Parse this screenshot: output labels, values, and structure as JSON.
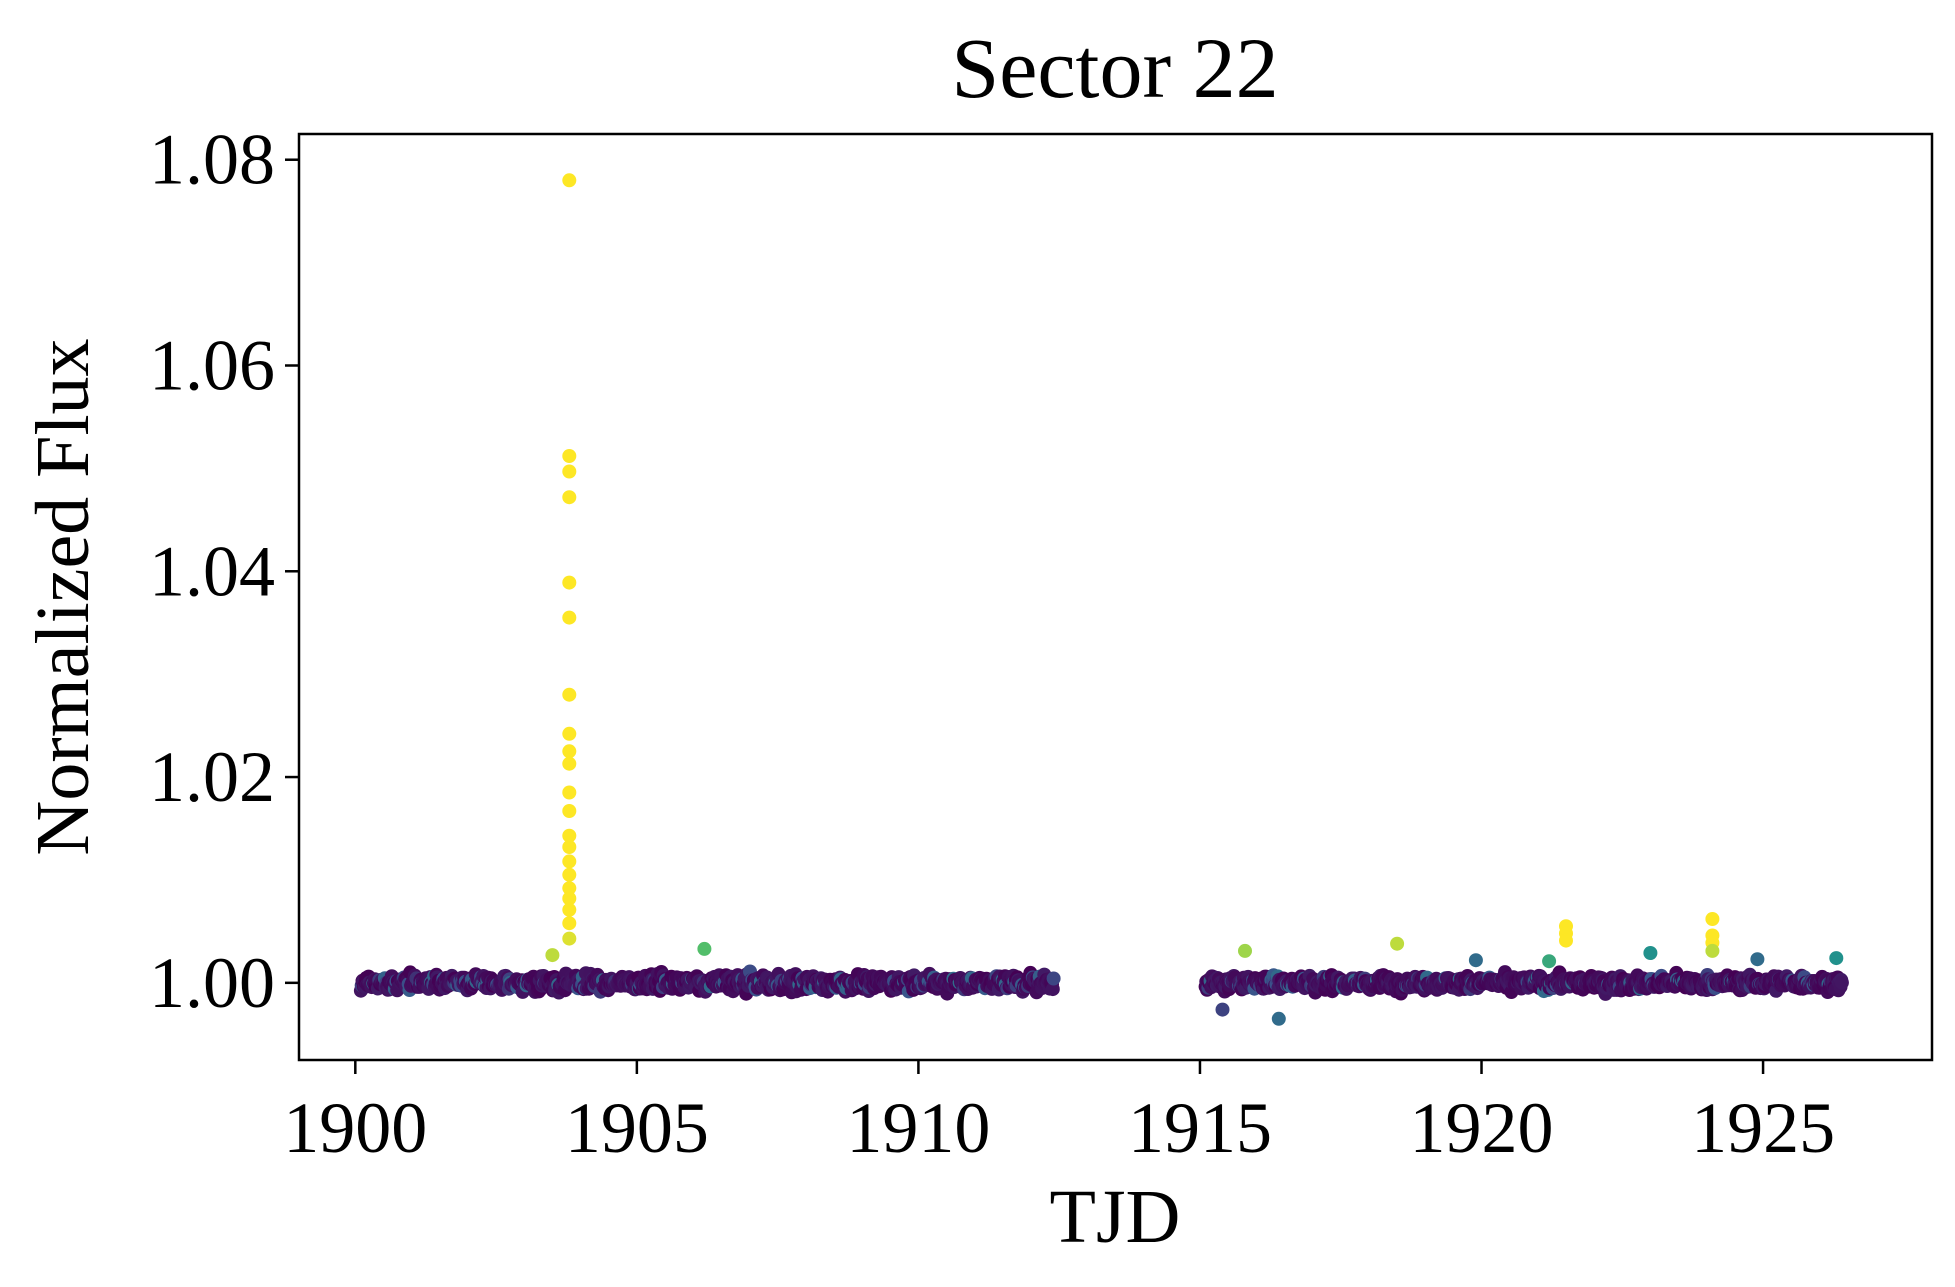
{
  "chart_data": {
    "type": "scatter",
    "title": "Sector 22",
    "xlabel": "TJD",
    "ylabel": "Normalized Flux",
    "xlim": [
      1899.0,
      1928.0
    ],
    "ylim": [
      0.9925,
      1.0825
    ],
    "xticks": [
      1900,
      1905,
      1910,
      1915,
      1920,
      1925
    ],
    "xtick_labels": [
      "1900",
      "1905",
      "1910",
      "1915",
      "1920",
      "1925"
    ],
    "yticks": [
      1.0,
      1.02,
      1.04,
      1.06,
      1.08
    ],
    "ytick_labels": [
      "1.00",
      "1.02",
      "1.04",
      "1.06",
      "1.08"
    ],
    "grid": false,
    "legend": "none",
    "colormap": "viridis",
    "colormap_stops": [
      "#440154",
      "#3b528b",
      "#21918c",
      "#5ec962",
      "#fde725"
    ],
    "series": [
      {
        "segments": [
          {
            "x_start": 1900.1,
            "x_end": 1912.4,
            "baseline": 1.0,
            "scatter": 0.0009
          },
          {
            "x_start": 1915.1,
            "x_end": 1926.4,
            "baseline": 1.0,
            "scatter": 0.0008
          }
        ],
        "highlight_points": {
          "x": [
            1903.8,
            1903.8,
            1903.8,
            1903.8,
            1903.8,
            1903.8,
            1903.8,
            1903.8,
            1903.8,
            1903.8,
            1903.8,
            1903.8,
            1903.8,
            1903.8,
            1903.8,
            1903.8,
            1903.8,
            1903.8,
            1903.8,
            1903.8,
            1903.8,
            1903.5,
            1906.2,
            1915.8,
            1916.4,
            1915.4,
            1918.5,
            1919.9,
            1921.2,
            1921.5,
            1921.5,
            1921.5,
            1923.0,
            1924.1,
            1924.1,
            1924.1,
            1924.1,
            1924.9,
            1926.3
          ],
          "y": [
            1.078,
            1.0512,
            1.0497,
            1.0472,
            1.0389,
            1.0355,
            1.028,
            1.0242,
            1.0225,
            1.0213,
            1.0185,
            1.0167,
            1.0143,
            1.0132,
            1.0118,
            1.0105,
            1.0092,
            1.0082,
            1.0071,
            1.0058,
            1.0043,
            1.0027,
            1.0033,
            1.0031,
            0.9965,
            0.9974,
            1.0038,
            1.0022,
            1.0021,
            1.0055,
            1.0048,
            1.0041,
            1.0029,
            1.0062,
            1.0046,
            1.0039,
            1.0031,
            1.0023,
            1.0024
          ],
          "c": [
            1.0,
            1.0,
            1.0,
            1.0,
            1.0,
            1.0,
            1.0,
            1.0,
            1.0,
            1.0,
            1.0,
            1.0,
            1.0,
            1.0,
            1.0,
            1.0,
            1.0,
            1.0,
            1.0,
            1.0,
            0.95,
            0.9,
            0.7,
            0.85,
            0.35,
            0.2,
            0.9,
            0.35,
            0.6,
            1.0,
            1.0,
            1.0,
            0.5,
            1.0,
            1.0,
            1.0,
            0.9,
            0.35,
            0.5
          ]
        }
      }
    ]
  }
}
